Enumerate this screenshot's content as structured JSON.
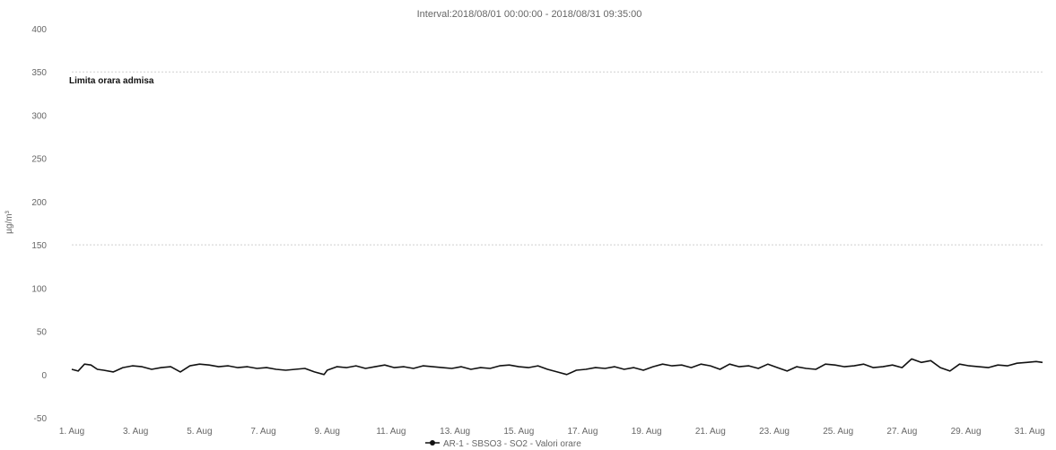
{
  "chart_data": {
    "type": "line",
    "title": "Interval:2018/08/01 00:00:00 - 2018/08/31 09:35:00",
    "ylabel": "µg/m³",
    "ylim": [
      -50,
      400
    ],
    "yticks": [
      -50,
      0,
      50,
      100,
      150,
      200,
      250,
      300,
      350,
      400
    ],
    "xlim": [
      1,
      31.4
    ],
    "xtick_labels": [
      "1. Aug",
      "3. Aug",
      "5. Aug",
      "7. Aug",
      "9. Aug",
      "11. Aug",
      "13. Aug",
      "15. Aug",
      "17. Aug",
      "19. Aug",
      "21. Aug",
      "23. Aug",
      "25. Aug",
      "27. Aug",
      "29. Aug",
      "31. Aug"
    ],
    "xtick_values": [
      1,
      3,
      5,
      7,
      9,
      11,
      13,
      15,
      17,
      19,
      21,
      23,
      25,
      27,
      29,
      31
    ],
    "threshold_lines": [
      {
        "label": "Limita orara admisa",
        "value": 350
      },
      {
        "label": "",
        "value": 150
      }
    ],
    "grid": false,
    "legend_position": "bottom-center",
    "series": [
      {
        "name": "AR-1 - SBSO3 - SO2 - Valori orare",
        "color": "#111111",
        "x": [
          1.0,
          1.2,
          1.4,
          1.6,
          1.8,
          2.0,
          2.3,
          2.6,
          2.9,
          3.2,
          3.5,
          3.8,
          4.1,
          4.4,
          4.7,
          5.0,
          5.3,
          5.6,
          5.9,
          6.2,
          6.5,
          6.8,
          7.1,
          7.4,
          7.7,
          8.0,
          8.3,
          8.6,
          8.9,
          9.0,
          9.3,
          9.6,
          9.9,
          10.2,
          10.5,
          10.8,
          11.1,
          11.4,
          11.7,
          12.0,
          12.3,
          12.6,
          12.9,
          13.2,
          13.5,
          13.8,
          14.1,
          14.4,
          14.7,
          15.0,
          15.3,
          15.6,
          15.9,
          16.2,
          16.5,
          16.8,
          17.1,
          17.4,
          17.7,
          18.0,
          18.3,
          18.6,
          18.9,
          19.2,
          19.5,
          19.8,
          20.1,
          20.4,
          20.7,
          21.0,
          21.3,
          21.6,
          21.9,
          22.2,
          22.5,
          22.8,
          23.1,
          23.4,
          23.7,
          24.0,
          24.3,
          24.6,
          24.9,
          25.2,
          25.5,
          25.8,
          26.1,
          26.4,
          26.7,
          27.0,
          27.3,
          27.6,
          27.9,
          28.2,
          28.5,
          28.8,
          29.1,
          29.4,
          29.7,
          30.0,
          30.3,
          30.6,
          30.9,
          31.2,
          31.4
        ],
        "values": [
          6,
          4,
          12,
          11,
          6,
          5,
          3,
          8,
          10,
          9,
          6,
          8,
          9,
          3,
          10,
          12,
          11,
          9,
          10,
          8,
          9,
          7,
          8,
          6,
          5,
          6,
          7,
          3,
          0,
          5,
          9,
          8,
          10,
          7,
          9,
          11,
          8,
          9,
          7,
          10,
          9,
          8,
          7,
          9,
          6,
          8,
          7,
          10,
          11,
          9,
          8,
          10,
          6,
          3,
          0,
          5,
          6,
          8,
          7,
          9,
          6,
          8,
          5,
          9,
          12,
          10,
          11,
          8,
          12,
          10,
          6,
          12,
          9,
          10,
          7,
          12,
          8,
          4,
          9,
          7,
          6,
          12,
          11,
          9,
          10,
          12,
          8,
          9,
          11,
          8,
          18,
          14,
          16,
          8,
          4,
          12,
          10,
          9,
          8,
          11,
          10,
          13,
          14,
          15,
          14
        ]
      }
    ]
  }
}
